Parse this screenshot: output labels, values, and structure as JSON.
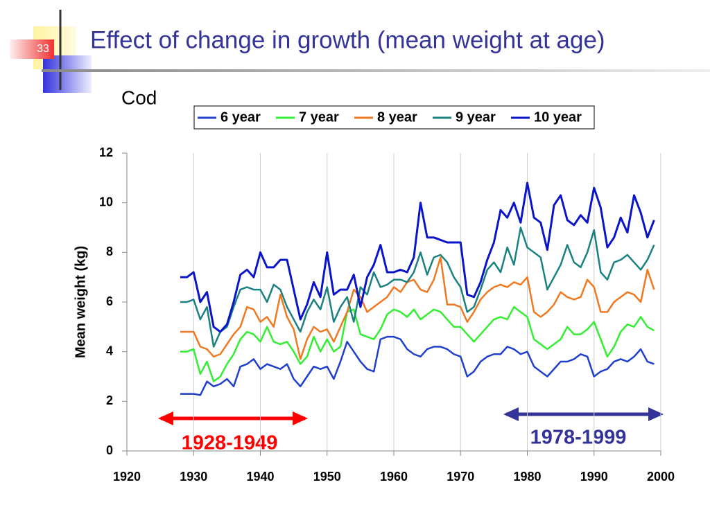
{
  "slide_number": "33",
  "chart_data": {
    "type": "line",
    "title": "Effect of change in growth (mean weight at age)",
    "subtitle": "Cod",
    "y_label": "Mean weight (kg)",
    "annotations": [
      "1928-1949",
      "1978-1999"
    ],
    "x": [
      1928,
      1929,
      1930,
      1931,
      1932,
      1933,
      1934,
      1935,
      1936,
      1937,
      1938,
      1939,
      1940,
      1941,
      1942,
      1943,
      1944,
      1945,
      1946,
      1947,
      1948,
      1949,
      1950,
      1951,
      1952,
      1953,
      1954,
      1955,
      1956,
      1957,
      1958,
      1959,
      1960,
      1961,
      1962,
      1963,
      1964,
      1965,
      1966,
      1967,
      1968,
      1969,
      1970,
      1971,
      1972,
      1973,
      1974,
      1975,
      1976,
      1977,
      1978,
      1979,
      1980,
      1981,
      1982,
      1983,
      1984,
      1985,
      1986,
      1987,
      1988,
      1989,
      1990,
      1991,
      1992,
      1993,
      1994,
      1995,
      1996,
      1997,
      1998,
      1999
    ],
    "series": [
      {
        "name": "6 year",
        "color": "#1f3fcc",
        "values": [
          2.3,
          2.3,
          2.3,
          2.25,
          2.8,
          2.6,
          2.7,
          2.9,
          2.6,
          3.4,
          3.5,
          3.7,
          3.3,
          3.5,
          3.4,
          3.3,
          3.5,
          2.9,
          2.6,
          3.0,
          3.4,
          3.3,
          3.4,
          2.9,
          3.6,
          4.4,
          4.0,
          3.6,
          3.3,
          3.2,
          4.5,
          4.6,
          4.6,
          4.5,
          4.1,
          3.9,
          3.8,
          4.1,
          4.2,
          4.2,
          4.1,
          3.9,
          3.8,
          3.0,
          3.2,
          3.6,
          3.8,
          3.9,
          3.9,
          4.2,
          4.1,
          3.9,
          4.0,
          3.4,
          3.2,
          3.0,
          3.3,
          3.6,
          3.6,
          3.7,
          3.9,
          3.8,
          3.0,
          3.2,
          3.3,
          3.6,
          3.7,
          3.6,
          3.8,
          4.1,
          3.6,
          3.5
        ]
      },
      {
        "name": "7 year",
        "color": "#33ee33",
        "values": [
          4.0,
          4.0,
          4.1,
          3.1,
          3.6,
          2.8,
          3.0,
          3.5,
          3.9,
          4.5,
          4.8,
          4.7,
          4.4,
          5.0,
          4.4,
          4.3,
          4.4,
          4.0,
          3.5,
          3.8,
          4.6,
          4.0,
          4.5,
          4.0,
          4.2,
          5.6,
          5.7,
          4.7,
          4.6,
          4.5,
          4.9,
          5.5,
          5.7,
          5.6,
          5.4,
          5.7,
          5.3,
          5.5,
          5.7,
          5.6,
          5.3,
          5.0,
          5.0,
          4.7,
          4.4,
          4.7,
          5.0,
          5.3,
          5.4,
          5.3,
          5.8,
          5.6,
          5.4,
          4.5,
          4.3,
          4.1,
          4.3,
          4.5,
          5.0,
          4.7,
          4.7,
          4.9,
          5.2,
          4.5,
          3.8,
          4.2,
          4.8,
          5.1,
          5.0,
          5.4,
          5.0,
          4.85
        ]
      },
      {
        "name": "8 year",
        "color": "#f07820",
        "values": [
          4.8,
          4.8,
          4.8,
          4.2,
          4.1,
          3.8,
          3.9,
          4.3,
          4.7,
          5.0,
          5.8,
          5.7,
          5.2,
          5.4,
          5.0,
          6.3,
          5.4,
          4.9,
          3.7,
          4.5,
          5.0,
          4.8,
          4.9,
          4.4,
          5.0,
          5.6,
          6.5,
          6.2,
          5.6,
          5.8,
          6.0,
          6.2,
          6.6,
          6.4,
          6.8,
          6.9,
          6.5,
          6.4,
          6.9,
          7.8,
          5.9,
          5.9,
          5.8,
          5.2,
          5.6,
          6.1,
          6.4,
          6.6,
          6.7,
          6.6,
          6.8,
          6.7,
          7.0,
          5.6,
          5.4,
          5.6,
          5.9,
          6.4,
          6.2,
          6.1,
          6.2,
          6.9,
          6.6,
          5.6,
          5.6,
          6.0,
          6.2,
          6.4,
          6.3,
          6.0,
          7.3,
          6.5
        ]
      },
      {
        "name": "9 year",
        "color": "#1a8080",
        "values": [
          6.0,
          6.0,
          6.1,
          5.3,
          5.8,
          4.2,
          4.8,
          5.0,
          5.8,
          6.5,
          6.6,
          6.5,
          6.5,
          6.0,
          6.7,
          6.5,
          5.8,
          5.3,
          4.8,
          5.6,
          6.1,
          5.7,
          6.6,
          5.2,
          5.8,
          6.2,
          5.2,
          6.6,
          6.3,
          7.2,
          6.6,
          6.7,
          6.9,
          6.9,
          6.8,
          7.2,
          8.0,
          7.1,
          7.8,
          7.9,
          7.6,
          7.0,
          6.6,
          5.6,
          5.8,
          6.5,
          7.3,
          7.6,
          7.2,
          8.2,
          7.5,
          9.0,
          8.2,
          8.0,
          7.8,
          6.5,
          7.0,
          7.5,
          8.3,
          7.6,
          7.4,
          8.0,
          8.9,
          7.2,
          6.9,
          7.6,
          7.7,
          7.9,
          7.6,
          7.3,
          7.7,
          8.3
        ]
      },
      {
        "name": "10 year",
        "color": "#0a14c8",
        "values": [
          7.0,
          7.0,
          7.2,
          6.0,
          6.4,
          5.0,
          4.8,
          5.1,
          6.0,
          7.1,
          7.3,
          7.0,
          8.0,
          7.4,
          7.4,
          7.7,
          7.7,
          6.5,
          5.3,
          5.9,
          6.8,
          6.2,
          8.0,
          6.3,
          6.5,
          6.5,
          7.1,
          5.8,
          7.0,
          7.5,
          8.3,
          7.2,
          7.2,
          7.3,
          7.2,
          7.8,
          10.0,
          8.6,
          8.6,
          8.5,
          8.4,
          8.4,
          8.4,
          6.3,
          6.2,
          6.8,
          7.7,
          8.4,
          9.7,
          9.4,
          10.0,
          9.2,
          10.8,
          9.4,
          9.2,
          8.1,
          9.9,
          10.3,
          9.3,
          9.1,
          9.5,
          9.2,
          10.6,
          9.8,
          8.2,
          8.6,
          9.4,
          8.8,
          10.3,
          9.6,
          8.6,
          9.3
        ]
      }
    ],
    "xlim": [
      1920,
      2000
    ],
    "xticks": [
      1920,
      1930,
      1940,
      1950,
      1960,
      1970,
      1980,
      1990,
      2000
    ],
    "ylim": [
      0,
      12
    ],
    "yticks": [
      0,
      2,
      4,
      6,
      8,
      10,
      12
    ],
    "grid": true
  }
}
